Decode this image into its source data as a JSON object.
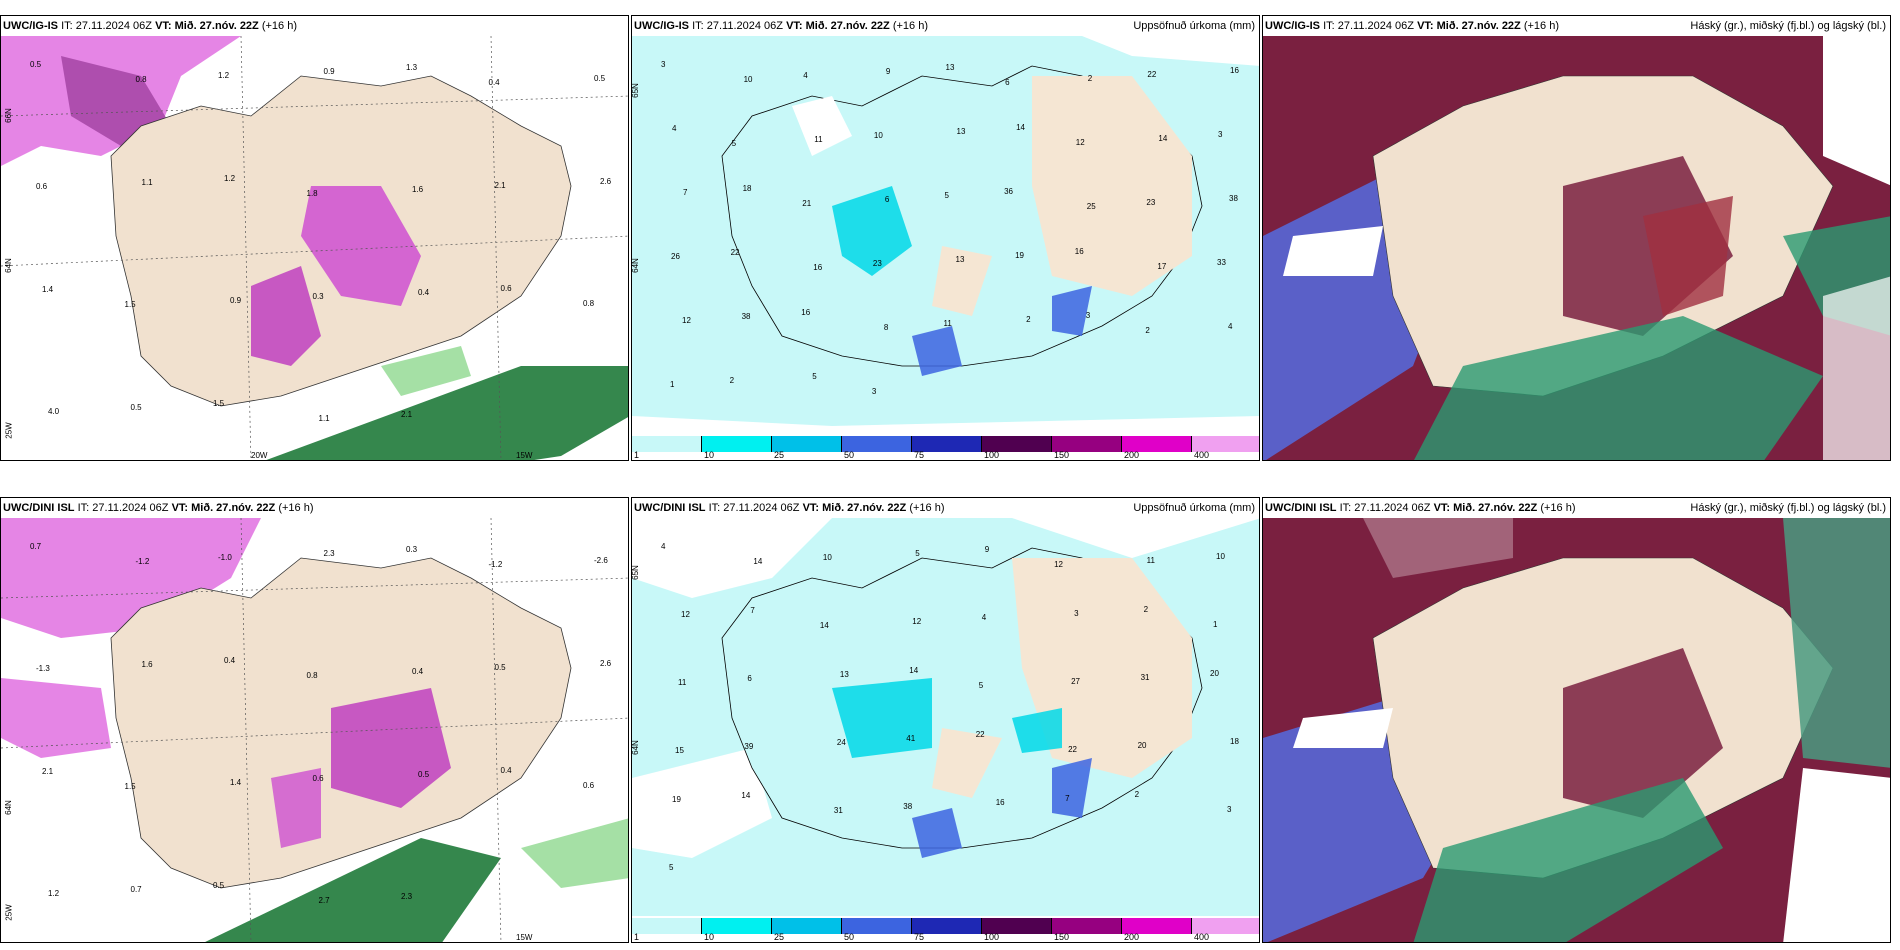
{
  "panels": [
    {
      "id": "p1",
      "model": "UWC/IG-IS",
      "it_label": "IT:",
      "it_value": "27.11.2024 06Z",
      "vt_label": "VT:",
      "vt_value": "Mið. 27.nóv. 22Z",
      "lead": "(+16 h)",
      "right_title": "",
      "map_labels": [
        "0.5",
        "0.8",
        "1.2",
        "0.9",
        "1.3",
        "0.4",
        "0.5",
        "0.6",
        "1.1",
        "1.2",
        "1.8",
        "1.6",
        "2.1",
        "2.6",
        "1.4",
        "1.5",
        "0.9",
        "0.3",
        "0.4",
        "0.6",
        "0.8",
        "4.0",
        "0.5",
        "1.5",
        "1.1",
        "2.1"
      ],
      "axis": {
        "lat1": "66N",
        "lat2": "64N",
        "lon1": "20W",
        "lon2": "15W",
        "lon3": "25W"
      }
    },
    {
      "id": "p2",
      "model": "UWC/IG-IS",
      "it_label": "IT:",
      "it_value": "27.11.2024 06Z",
      "vt_label": "VT:",
      "vt_value": "Mið. 27.nóv. 22Z",
      "lead": "(+16 h)",
      "right_title": "Uppsöfnuð úrkoma (mm)",
      "map_labels": [
        "3",
        "10",
        "4",
        "9",
        "13",
        "6",
        "2",
        "22",
        "16",
        "4",
        "5",
        "11",
        "10",
        "13",
        "14",
        "12",
        "14",
        "3",
        "7",
        "18",
        "21",
        "6",
        "5",
        "36",
        "25",
        "23",
        "38",
        "26",
        "22",
        "16",
        "23",
        "13",
        "19",
        "16",
        "17",
        "33",
        "12",
        "38",
        "16",
        "8",
        "11",
        "2",
        "3",
        "2",
        "4",
        "1",
        "2",
        "5",
        "3"
      ],
      "axis": {
        "lat1": "65N",
        "lat2": "64N"
      }
    },
    {
      "id": "p3",
      "model": "UWC/IG-IS",
      "it_label": "IT:",
      "it_value": "27.11.2024 06Z",
      "vt_label": "VT:",
      "vt_value": "Mið. 27.nóv. 22Z",
      "lead": "(+16 h)",
      "right_title": "Háský (gr.), miðský (fj.bl.) og lágský (bl.)",
      "map_labels": [],
      "axis": {}
    },
    {
      "id": "p4",
      "model": "UWC/DINI ISL",
      "it_label": "IT:",
      "it_value": "27.11.2024 06Z",
      "vt_label": "VT:",
      "vt_value": "Mið. 27.nóv. 22Z",
      "lead": "(+16 h)",
      "right_title": "",
      "map_labels": [
        "0.7",
        "-1.2",
        "-1.0",
        "2.3",
        "0.3",
        "-1.2",
        "-2.6",
        "-1.3",
        "1.6",
        "0.4",
        "0.8",
        "0.4",
        "0.5",
        "2.6",
        "2.1",
        "1.5",
        "1.4",
        "0.6",
        "0.5",
        "0.4",
        "0.6",
        "1.2",
        "0.7",
        "0.5",
        "2.7",
        "2.3"
      ],
      "axis": {
        "lat1": "64N",
        "lon1": "25W",
        "lon2": "15W"
      }
    },
    {
      "id": "p5",
      "model": "UWC/DINI ISL",
      "it_label": "IT:",
      "it_value": "27.11.2024 06Z",
      "vt_label": "VT:",
      "vt_value": "Mið. 27.nóv. 22Z",
      "lead": "(+16 h)",
      "right_title": "Uppsöfnuð úrkoma (mm)",
      "map_labels": [
        "4",
        "14",
        "10",
        "5",
        "9",
        "12",
        "11",
        "10",
        "12",
        "7",
        "14",
        "12",
        "4",
        "3",
        "2",
        "1",
        "11",
        "6",
        "13",
        "14",
        "5",
        "27",
        "31",
        "20",
        "15",
        "39",
        "24",
        "41",
        "22",
        "22",
        "20",
        "18",
        "19",
        "14",
        "31",
        "38",
        "16",
        "7",
        "2",
        "3",
        "5"
      ],
      "axis": {
        "lat1": "65N",
        "lat2": "64N"
      }
    },
    {
      "id": "p6",
      "model": "UWC/DINI ISL",
      "it_label": "IT:",
      "it_value": "27.11.2024 06Z",
      "vt_label": "VT:",
      "vt_value": "Mið. 27.nóv. 22Z",
      "lead": "(+16 h)",
      "right_title": "Háský (gr.), miðský (fj.bl.) og lágský (bl.)",
      "map_labels": [],
      "axis": {}
    }
  ],
  "legend": {
    "thresholds": [
      "1",
      "10",
      "25",
      "50",
      "75",
      "100",
      "150",
      "200",
      "400"
    ],
    "colors": [
      "#c8f8f8",
      "#00f0f0",
      "#00c0e8",
      "#3c64e0",
      "#1e28b4",
      "#500050",
      "#960080",
      "#e000c8",
      "#f0a0f0"
    ]
  },
  "colors": {
    "land": "#f5e6d3",
    "sea_precip_light": "#c8f8f8",
    "purple": "#d050d0",
    "dark_purple": "#703070",
    "green": "#208040",
    "cloud_high": "#7a2040",
    "cloud_mid": "#5060d0",
    "cloud_low": "#30a070"
  }
}
